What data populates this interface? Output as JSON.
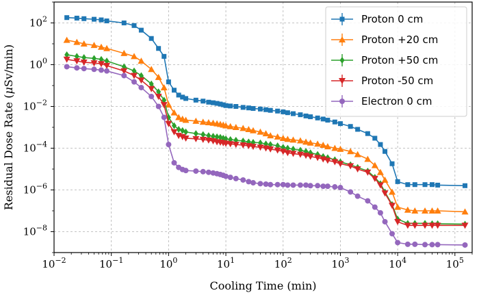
{
  "chart_data": {
    "type": "line",
    "x_scale": "log",
    "y_scale": "log",
    "xlim": [
      0.01,
      200000
    ],
    "ylim": [
      1e-09,
      1000
    ],
    "grid": true,
    "legend_position": "top-right",
    "xlabel": "Cooling Time (min)",
    "ylabel_parts": [
      "Residual Dose Rate (",
      "μ",
      "Sv/min)"
    ],
    "x_ticks": [
      {
        "value": 0.01,
        "base": "10",
        "exp": "−2"
      },
      {
        "value": 0.1,
        "base": "10",
        "exp": "−1"
      },
      {
        "value": 1,
        "base": "10",
        "exp": "0"
      },
      {
        "value": 10,
        "base": "10",
        "exp": "1"
      },
      {
        "value": 100,
        "base": "10",
        "exp": "2"
      },
      {
        "value": 1000,
        "base": "10",
        "exp": "3"
      },
      {
        "value": 10000,
        "base": "10",
        "exp": "4"
      },
      {
        "value": 100000,
        "base": "10",
        "exp": "5"
      }
    ],
    "y_ticks": [
      {
        "value": 100,
        "base": "10",
        "exp": "2"
      },
      {
        "value": 1,
        "base": "10",
        "exp": "0"
      },
      {
        "value": 0.01,
        "base": "10",
        "exp": "−2"
      },
      {
        "value": 0.0001,
        "base": "10",
        "exp": "−4"
      },
      {
        "value": 1e-06,
        "base": "10",
        "exp": "−6"
      },
      {
        "value": 1e-08,
        "base": "10",
        "exp": "−8"
      }
    ],
    "x": [
      0.0167,
      0.025,
      0.0333,
      0.05,
      0.0667,
      0.0833,
      0.1667,
      0.25,
      0.333,
      0.5,
      0.667,
      0.833,
      1,
      1.25,
      1.5,
      1.75,
      2,
      3,
      4,
      5,
      6,
      7,
      8,
      9,
      10,
      12,
      15,
      20,
      25,
      30,
      40,
      50,
      60,
      80,
      100,
      120,
      150,
      200,
      250,
      300,
      400,
      500,
      600,
      800,
      1000,
      1500,
      2000,
      3000,
      4000,
      5000,
      6000,
      8000,
      10000,
      15000,
      20000,
      30000,
      40000,
      50000,
      150000
    ],
    "series": [
      {
        "name": "Proton 0 cm",
        "color": "#1f77b4",
        "marker": "square",
        "values": [
          180,
          170,
          160,
          150,
          140,
          125,
          100,
          75,
          45,
          18,
          6,
          2.5,
          0.15,
          0.06,
          0.035,
          0.028,
          0.024,
          0.02,
          0.018,
          0.016,
          0.015,
          0.014,
          0.013,
          0.012,
          0.011,
          0.0105,
          0.01,
          0.009,
          0.0085,
          0.008,
          0.0075,
          0.007,
          0.0065,
          0.006,
          0.0055,
          0.005,
          0.0045,
          0.004,
          0.0035,
          0.0032,
          0.0028,
          0.0025,
          0.0022,
          0.0018,
          0.0015,
          0.0011,
          0.0008,
          0.0005,
          0.0003,
          0.00015,
          7e-05,
          1.8e-05,
          2.5e-06,
          1.8e-06,
          1.8e-06,
          1.8e-06,
          1.8e-06,
          1.7e-06,
          1.6e-06
        ]
      },
      {
        "name": "Proton +20 cm",
        "color": "#ff7f0e",
        "marker": "triangle-up",
        "values": [
          15,
          12,
          10,
          8.5,
          7,
          6,
          3.5,
          2.5,
          1.5,
          0.6,
          0.25,
          0.08,
          0.012,
          0.005,
          0.003,
          0.0025,
          0.0022,
          0.002,
          0.0018,
          0.0017,
          0.0016,
          0.0015,
          0.0014,
          0.0013,
          0.0012,
          0.0011,
          0.001,
          0.0009,
          0.0008,
          0.0007,
          0.0006,
          0.0005,
          0.0004,
          0.00035,
          0.0003,
          0.00027,
          0.00025,
          0.00023,
          0.0002,
          0.00018,
          0.00016,
          0.00014,
          0.00012,
          0.0001,
          9e-05,
          7e-05,
          5e-05,
          3e-05,
          1.5e-05,
          7e-06,
          3e-06,
          8e-07,
          1.5e-07,
          1.1e-07,
          1e-07,
          1e-07,
          1e-07,
          1e-07,
          9e-08
        ]
      },
      {
        "name": "Proton +50 cm",
        "color": "#2ca02c",
        "marker": "diamond",
        "values": [
          3,
          2.5,
          2.2,
          2,
          1.8,
          1.5,
          0.8,
          0.5,
          0.3,
          0.12,
          0.05,
          0.02,
          0.003,
          0.0012,
          0.0008,
          0.0007,
          0.0006,
          0.0005,
          0.00045,
          0.0004,
          0.00037,
          0.00035,
          0.00033,
          0.0003,
          0.00028,
          0.00026,
          0.00024,
          0.00022,
          0.0002,
          0.00019,
          0.00018,
          0.00016,
          0.00015,
          0.00013,
          0.00011,
          0.0001,
          9e-05,
          8e-05,
          7e-05,
          6e-05,
          5e-05,
          4e-05,
          3.5e-05,
          2.8e-05,
          2.2e-05,
          1.6e-05,
          1.2e-05,
          8e-06,
          4e-06,
          2e-06,
          8e-07,
          2e-07,
          4e-08,
          2.5e-08,
          2.5e-08,
          2.5e-08,
          2.4e-08,
          2.4e-08,
          2.3e-08
        ]
      },
      {
        "name": "Proton -50 cm",
        "color": "#d62728",
        "marker": "triangle-down",
        "values": [
          1.8,
          1.5,
          1.3,
          1.2,
          1.1,
          0.9,
          0.5,
          0.3,
          0.18,
          0.07,
          0.03,
          0.012,
          0.0015,
          0.0006,
          0.0004,
          0.00035,
          0.0003,
          0.00028,
          0.00026,
          0.00024,
          0.00022,
          0.0002,
          0.00019,
          0.00018,
          0.00017,
          0.00016,
          0.00015,
          0.00014,
          0.00013,
          0.00012,
          0.00011,
          0.0001,
          9e-05,
          8e-05,
          7e-05,
          6e-05,
          5.5e-05,
          5e-05,
          4.5e-05,
          4e-05,
          3.5e-05,
          3e-05,
          2.6e-05,
          2.2e-05,
          1.8e-05,
          1.4e-05,
          1e-05,
          7e-06,
          3.5e-06,
          1.7e-06,
          7e-07,
          1.8e-07,
          3e-08,
          2e-08,
          2e-08,
          2e-08,
          2e-08,
          2e-08,
          2e-08
        ]
      },
      {
        "name": "Electron 0 cm",
        "color": "#9467bd",
        "marker": "circle",
        "values": [
          0.8,
          0.7,
          0.65,
          0.6,
          0.55,
          0.5,
          0.3,
          0.15,
          0.08,
          0.03,
          0.01,
          0.003,
          0.00015,
          2e-05,
          1.2e-05,
          9.5e-06,
          8.5e-06,
          8e-06,
          7.5e-06,
          7e-06,
          6.5e-06,
          6e-06,
          5.5e-06,
          5e-06,
          4.5e-06,
          4e-06,
          3.5e-06,
          3e-06,
          2.5e-06,
          2.2e-06,
          2e-06,
          1.9e-06,
          1.8e-06,
          1.8e-06,
          1.8e-06,
          1.7e-06,
          1.7e-06,
          1.7e-06,
          1.7e-06,
          1.6e-06,
          1.6e-06,
          1.5e-06,
          1.5e-06,
          1.4e-06,
          1.3e-06,
          8e-07,
          5e-07,
          3e-07,
          1.5e-07,
          8e-08,
          3e-08,
          8e-09,
          3e-09,
          2.5e-09,
          2.5e-09,
          2.4e-09,
          2.4e-09,
          2.4e-09,
          2.3e-09
        ]
      }
    ]
  }
}
